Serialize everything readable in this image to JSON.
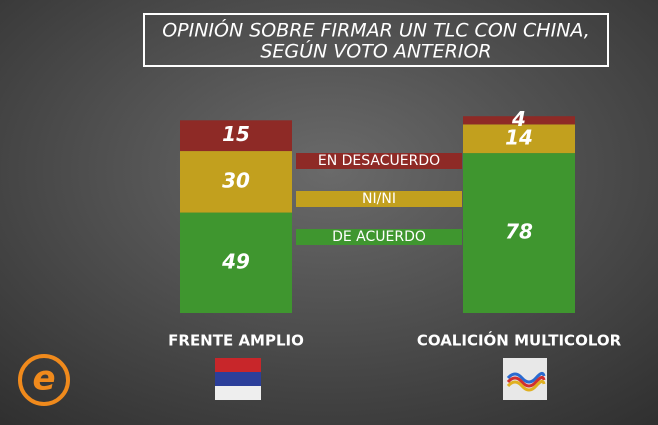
{
  "chart_data": {
    "type": "stacked-bar",
    "title": [
      "OPINIÓN SOBRE FIRMAR UN TLC CON CHINA,",
      "SEGÚN VOTO ANTERIOR"
    ],
    "categories": [
      "FRENTE AMPLIO",
      "COALICIÓN MULTICOLOR"
    ],
    "series": [
      {
        "name": "DE ACUERDO",
        "color": "#3f962f",
        "values": [
          49,
          78
        ]
      },
      {
        "name": "NI/NI",
        "color": "#c2a01e",
        "values": [
          30,
          14
        ]
      },
      {
        "name": "EN DESACUERDO",
        "color": "#8e2a26",
        "values": [
          15,
          4
        ]
      }
    ]
  }
}
